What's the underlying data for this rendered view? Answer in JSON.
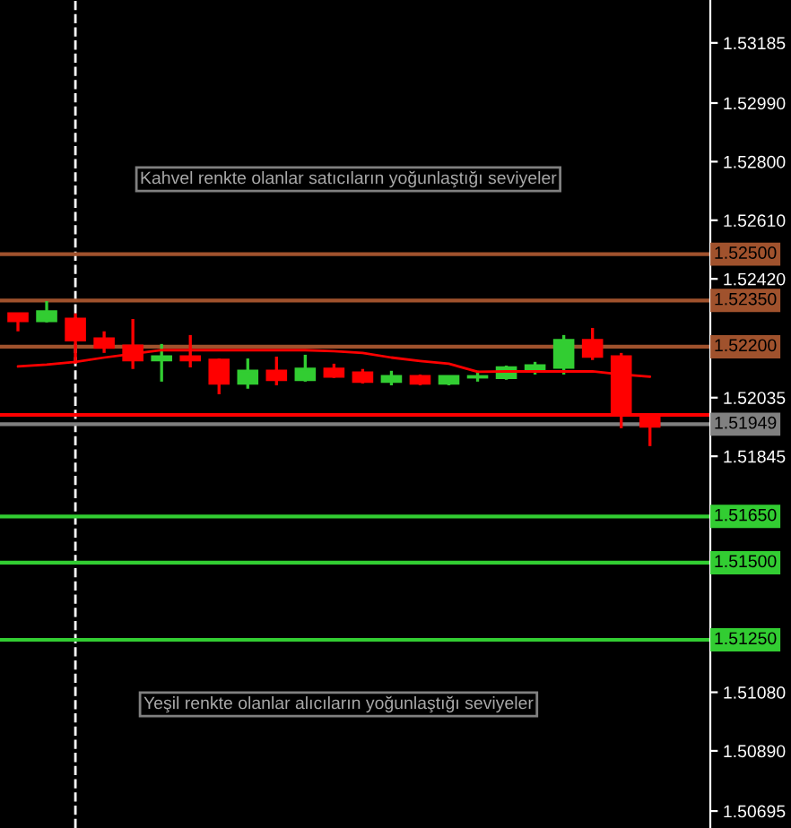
{
  "chart_data": {
    "type": "candlestick",
    "categories": [
      null,
      null,
      null,
      null,
      null,
      null,
      null,
      null,
      null,
      null,
      null,
      null,
      null,
      null,
      null,
      null,
      null,
      null,
      null,
      null,
      null,
      null,
      null
    ],
    "ohlc": [
      [
        1.52308,
        1.52308,
        1.5225,
        1.52284
      ],
      [
        1.52284,
        1.52348,
        1.52279,
        1.52314
      ],
      [
        1.5229,
        1.52308,
        1.52145,
        1.52221
      ],
      [
        1.52226,
        1.5225,
        1.5218,
        1.52197
      ],
      [
        1.52203,
        1.5229,
        1.52128,
        1.52157
      ],
      [
        1.52157,
        1.52209,
        1.52087,
        1.52168
      ],
      [
        1.52168,
        1.52238,
        1.52133,
        1.52157
      ],
      [
        1.52157,
        1.52162,
        1.52046,
        1.52081
      ],
      [
        1.52081,
        1.52162,
        1.52064,
        1.52122
      ],
      [
        1.52122,
        1.52168,
        1.52075,
        1.52093
      ],
      [
        1.52093,
        1.52174,
        1.52087,
        1.52128
      ],
      [
        1.52128,
        1.52145,
        1.52099,
        1.52104
      ],
      [
        1.52116,
        1.52128,
        1.52081,
        1.52087
      ],
      [
        1.52087,
        1.52122,
        1.52075,
        1.52104
      ],
      [
        1.52104,
        1.5211,
        1.52075,
        1.52081
      ],
      [
        1.52081,
        1.52104,
        1.52075,
        1.52104
      ],
      [
        1.52101,
        1.52122,
        1.52087,
        1.52104
      ],
      [
        1.52099,
        1.52139,
        1.52093,
        1.52133
      ],
      [
        1.52128,
        1.52151,
        1.5211,
        1.52139
      ],
      [
        1.52133,
        1.52238,
        1.5211,
        1.52221
      ],
      [
        1.52221,
        1.52261,
        1.52157,
        1.52168
      ],
      [
        1.52168,
        1.5218,
        1.51936,
        1.51977
      ],
      [
        1.51977,
        1.51982,
        1.51878,
        1.51942
      ]
    ],
    "colors": [
      "#ff0000",
      "#32cd32",
      "#ff0000",
      "#ff0000",
      "#ff0000",
      "#32cd32",
      "#ff0000",
      "#ff0000",
      "#32cd32",
      "#ff0000",
      "#32cd32",
      "#ff0000",
      "#ff0000",
      "#32cd32",
      "#ff0000",
      "#32cd32",
      "#32cd32",
      "#32cd32",
      "#32cd32",
      "#32cd32",
      "#ff0000",
      "#ff0000",
      "#ff0000"
    ],
    "series": [
      {
        "type": "line",
        "color": "#ff0000",
        "values": [
          1.52136,
          1.52142,
          1.52151,
          1.52165,
          1.52177,
          1.52189,
          1.52189,
          1.52189,
          1.52189,
          1.52189,
          1.52189,
          1.52186,
          1.5218,
          1.52165,
          1.52154,
          1.52145,
          1.52119,
          1.5212,
          1.5212,
          1.5212,
          1.5212,
          1.5211,
          1.52103
        ]
      }
    ],
    "ylim": [
      1.5064,
      1.53324
    ],
    "yticks": [
      {
        "value": 1.53185,
        "label": "1.53185"
      },
      {
        "value": 1.5299,
        "label": "1.52990"
      },
      {
        "value": 1.528,
        "label": "1.52800"
      },
      {
        "value": 1.5261,
        "label": "1.52610"
      },
      {
        "value": 1.5242,
        "label": "1.52420"
      },
      {
        "value": 1.52035,
        "label": "1.52035"
      },
      {
        "value": 1.51845,
        "label": "1.51845"
      },
      {
        "value": 1.5108,
        "label": "1.51080"
      },
      {
        "value": 1.5089,
        "label": "1.50890"
      },
      {
        "value": 1.50695,
        "label": "1.50695"
      }
    ],
    "ref_lines": [
      {
        "axis": "y",
        "value": 1.525,
        "label": "1.52500",
        "color": "#a0522d"
      },
      {
        "axis": "y",
        "value": 1.5235,
        "label": "1.52350",
        "color": "#a0522d"
      },
      {
        "axis": "y",
        "value": 1.522,
        "label": "1.52200",
        "color": "#a0522d"
      },
      {
        "axis": "y",
        "value": 1.5165,
        "label": "1.51650",
        "color": "#32cd32"
      },
      {
        "axis": "y",
        "value": 1.515,
        "label": "1.51500",
        "color": "#32cd32"
      },
      {
        "axis": "y",
        "value": 1.5125,
        "label": "1.51250",
        "color": "#32cd32"
      },
      {
        "axis": "y",
        "value": 1.51979,
        "color": "#ff0000"
      },
      {
        "axis": "y",
        "value": 1.51949,
        "label": "1.51949",
        "color": "#808080"
      }
    ],
    "annotations": [
      "Kahvel renkte olanlar satıcıların yoğunlaştığı seviyeler",
      "Yeşil renkte olanlar alıcıların yoğunlaştığı seviyeler"
    ],
    "grid": false,
    "legend": false
  }
}
